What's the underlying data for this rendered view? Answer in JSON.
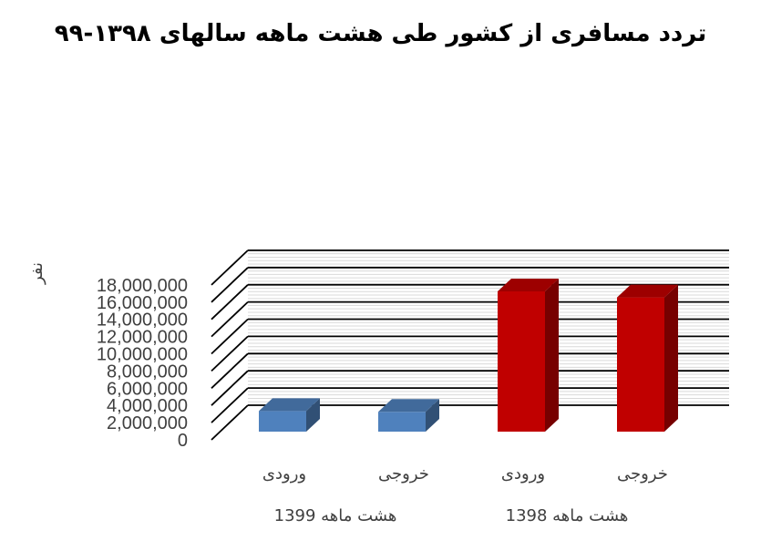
{
  "chart_data": {
    "type": "bar",
    "title": "تردد مسافری از کشور طی هشت ماهه سالهای ۱۳۹۸-۹۹",
    "ylabel": "نفر",
    "xlabel": "",
    "ylim": [
      0,
      18000000
    ],
    "y_ticks": [
      0,
      2000000,
      4000000,
      6000000,
      8000000,
      10000000,
      12000000,
      14000000,
      16000000,
      18000000
    ],
    "y_tick_labels": [
      "0",
      "2,000,000",
      "4,000,000",
      "6,000,000",
      "8,000,000",
      "10,000,000",
      "12,000,000",
      "14,000,000",
      "16,000,000",
      "18,000,000"
    ],
    "groups": [
      {
        "label": "هشت ماهه 1399",
        "categories": [
          "ورودی",
          "خروجی"
        ],
        "values": [
          2400000,
          2300000
        ],
        "color": "#4F81BD"
      },
      {
        "label": "هشت ماهه 1398",
        "categories": [
          "ورودی",
          "خروجی"
        ],
        "values": [
          16300000,
          15600000
        ],
        "color": "#C00000"
      }
    ],
    "grid": true,
    "legend": "none",
    "style": "3d-column"
  }
}
